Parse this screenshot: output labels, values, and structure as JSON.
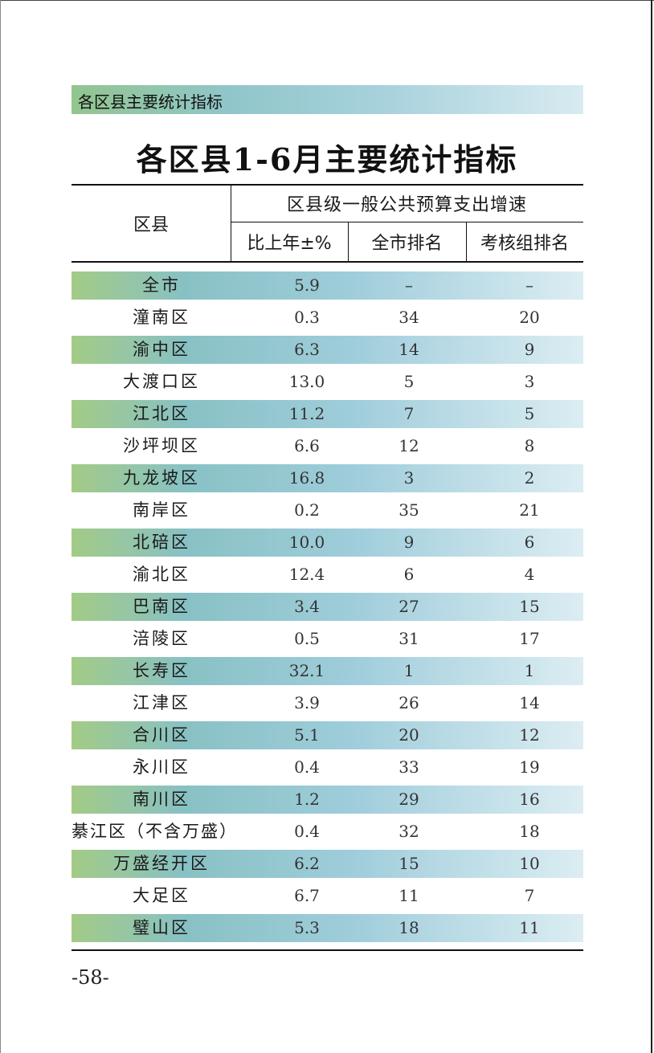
{
  "section_banner": "各区县主要统计指标",
  "title": "各区县1-6月主要统计指标",
  "header": {
    "county": "区县",
    "group": "区县级一般公共预算支出增速",
    "col_pct": "比上年±%",
    "col_city_rank": "全市排名",
    "col_group_rank": "考核组排名"
  },
  "rows": [
    {
      "name": "全市",
      "pct": "5.9",
      "city_rank": "–",
      "group_rank": "–",
      "shaded": true
    },
    {
      "name": "潼南区",
      "pct": "0.3",
      "city_rank": "34",
      "group_rank": "20",
      "shaded": false
    },
    {
      "name": "渝中区",
      "pct": "6.3",
      "city_rank": "14",
      "group_rank": "9",
      "shaded": true
    },
    {
      "name": "大渡口区",
      "pct": "13.0",
      "city_rank": "5",
      "group_rank": "3",
      "shaded": false
    },
    {
      "name": "江北区",
      "pct": "11.2",
      "city_rank": "7",
      "group_rank": "5",
      "shaded": true
    },
    {
      "name": "沙坪坝区",
      "pct": "6.6",
      "city_rank": "12",
      "group_rank": "8",
      "shaded": false
    },
    {
      "name": "九龙坡区",
      "pct": "16.8",
      "city_rank": "3",
      "group_rank": "2",
      "shaded": true
    },
    {
      "name": "南岸区",
      "pct": "0.2",
      "city_rank": "35",
      "group_rank": "21",
      "shaded": false
    },
    {
      "name": "北碚区",
      "pct": "10.0",
      "city_rank": "9",
      "group_rank": "6",
      "shaded": true
    },
    {
      "name": "渝北区",
      "pct": "12.4",
      "city_rank": "6",
      "group_rank": "4",
      "shaded": false
    },
    {
      "name": "巴南区",
      "pct": "3.4",
      "city_rank": "27",
      "group_rank": "15",
      "shaded": true
    },
    {
      "name": "涪陵区",
      "pct": "0.5",
      "city_rank": "31",
      "group_rank": "17",
      "shaded": false
    },
    {
      "name": "长寿区",
      "pct": "32.1",
      "city_rank": "1",
      "group_rank": "1",
      "shaded": true
    },
    {
      "name": "江津区",
      "pct": "3.9",
      "city_rank": "26",
      "group_rank": "14",
      "shaded": false
    },
    {
      "name": "合川区",
      "pct": "5.1",
      "city_rank": "20",
      "group_rank": "12",
      "shaded": true
    },
    {
      "name": "永川区",
      "pct": "0.4",
      "city_rank": "33",
      "group_rank": "19",
      "shaded": false
    },
    {
      "name": "南川区",
      "pct": "1.2",
      "city_rank": "29",
      "group_rank": "16",
      "shaded": true
    },
    {
      "name": "綦江区（不含万盛）",
      "pct": "0.4",
      "city_rank": "32",
      "group_rank": "18",
      "shaded": false
    },
    {
      "name": "万盛经开区",
      "pct": "6.2",
      "city_rank": "15",
      "group_rank": "10",
      "shaded": true
    },
    {
      "name": "大足区",
      "pct": "6.7",
      "city_rank": "11",
      "group_rank": "7",
      "shaded": false
    },
    {
      "name": "璧山区",
      "pct": "5.3",
      "city_rank": "18",
      "group_rank": "11",
      "shaded": true
    }
  ],
  "page_number": "-58-"
}
